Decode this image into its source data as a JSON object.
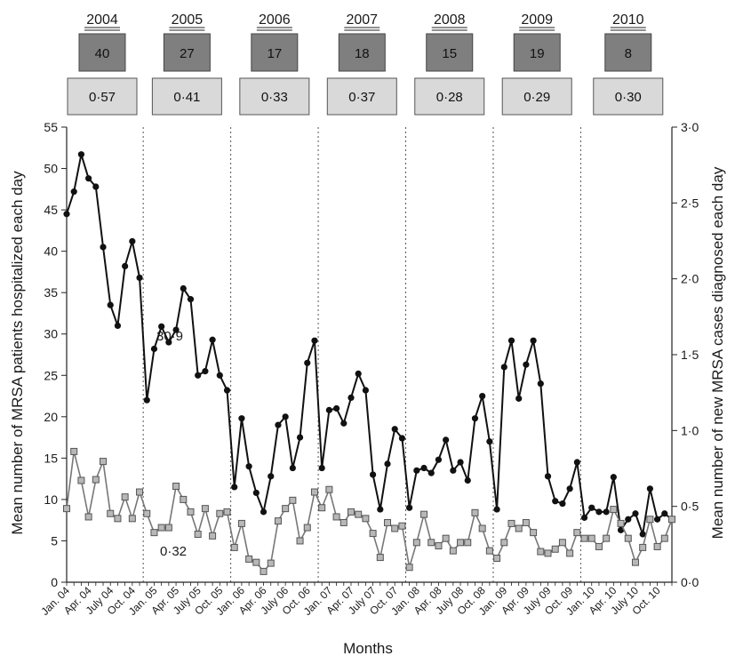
{
  "chart_data": {
    "type": "line",
    "xlabel": "Months",
    "ylabel": "Mean number of MRSA patients hospitalized each day",
    "y2label": "Mean number of new MRSA cases diagnosed each day",
    "ylim": [
      0,
      55
    ],
    "y2lim": [
      0,
      3.0
    ],
    "yticks": [
      "0",
      "5",
      "10",
      "15",
      "20",
      "25",
      "30",
      "35",
      "40",
      "45",
      "50",
      "55"
    ],
    "y2ticks": [
      "0·0",
      "0·5",
      "1·0",
      "1·5",
      "2·0",
      "2·5",
      "3·0"
    ],
    "x_tick_labels": [
      "Jan. 04",
      "Apr. 04",
      "July 04",
      "Oct. 04",
      "Jan. 05",
      "Apr. 05",
      "July 05",
      "Oct. 05",
      "Jan. 06",
      "Apr. 06",
      "July 06",
      "Oct. 06",
      "Jan. 07",
      "Apr. 07",
      "July 07",
      "Oct. 07",
      "Jan. 08",
      "Apr. 08",
      "July 08",
      "Oct. 08",
      "Jan. 09",
      "Apr. 09",
      "July 09",
      "Oct. 09",
      "Jan. 10",
      "Apr. 10",
      "July 10",
      "Oct. 10"
    ],
    "years": [
      {
        "year": "2004",
        "count": "40",
        "rate": "0·57"
      },
      {
        "year": "2005",
        "count": "27",
        "rate": "0·41"
      },
      {
        "year": "2006",
        "count": "17",
        "rate": "0·33"
      },
      {
        "year": "2007",
        "count": "18",
        "rate": "0·37"
      },
      {
        "year": "2008",
        "count": "15",
        "rate": "0·28"
      },
      {
        "year": "2009",
        "count": "19",
        "rate": "0·29"
      },
      {
        "year": "2010",
        "count": "8",
        "rate": "0·30"
      }
    ],
    "annotations": [
      "30·9",
      "0·32"
    ],
    "series": [
      {
        "axis": "left",
        "marker": "circle",
        "values": [
          44.5,
          47.2,
          51.7,
          48.8,
          47.8,
          40.5,
          33.5,
          31.0,
          38.2,
          41.2,
          36.8,
          22.0,
          28.2,
          30.9,
          29.0,
          30.5,
          35.5,
          34.2,
          25.0,
          25.5,
          29.3,
          25.0,
          23.2,
          11.5,
          19.8,
          14.0,
          10.8,
          8.5,
          12.8,
          19.0,
          20.0,
          13.8,
          17.5,
          26.5,
          29.2,
          13.8,
          20.8,
          21.0,
          19.2,
          22.3,
          25.2,
          23.2,
          13.0,
          8.8,
          14.3,
          18.5,
          17.4,
          9.0,
          13.5,
          13.8,
          13.2,
          14.8,
          17.2,
          13.5,
          14.5,
          12.3,
          19.8,
          22.5,
          17.0,
          8.8,
          26.0,
          29.2,
          22.2,
          26.3,
          29.2,
          24.0,
          12.8,
          9.8,
          9.5,
          11.3,
          14.5,
          7.8,
          9.0,
          8.5,
          8.5,
          12.7,
          6.3,
          7.6,
          8.3,
          5.8,
          11.3,
          7.6,
          8.3,
          7.6
        ]
      },
      {
        "axis": "left",
        "marker": "square",
        "values": [
          8.9,
          15.8,
          12.3,
          7.9,
          12.4,
          14.6,
          8.3,
          7.7,
          10.3,
          7.7,
          10.9,
          8.3,
          6.0,
          6.6,
          6.6,
          11.6,
          10.0,
          8.5,
          5.8,
          8.9,
          5.6,
          8.3,
          8.5,
          4.2,
          7.1,
          2.8,
          2.4,
          1.3,
          2.3,
          7.4,
          8.9,
          9.9,
          5.0,
          6.6,
          10.9,
          9.0,
          11.2,
          7.9,
          7.2,
          8.5,
          8.2,
          7.7,
          5.9,
          3.0,
          7.2,
          6.5,
          6.8,
          1.8,
          4.8,
          8.2,
          4.8,
          4.4,
          5.3,
          3.8,
          4.8,
          4.8,
          8.4,
          6.5,
          3.8,
          2.9,
          4.8,
          7.1,
          6.5,
          7.2,
          6.0,
          3.7,
          3.5,
          4.0,
          4.8,
          3.5,
          6.0,
          5.3,
          5.3,
          4.3,
          5.3,
          8.8,
          7.1,
          5.3,
          2.4,
          4.2,
          7.6,
          4.3,
          5.3,
          7.6
        ]
      }
    ]
  }
}
